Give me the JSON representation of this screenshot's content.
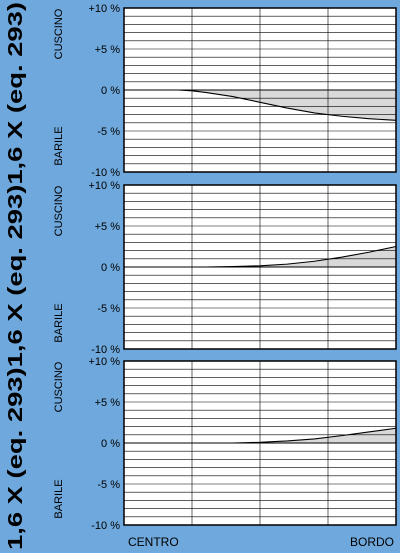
{
  "sidebar_caption": "1,6 X (eq. 293)1,6 X (eq. 293)1,6 X (eq. 293)",
  "chart_data": [
    {
      "type": "line",
      "label_top": "CUSCINO",
      "label_bottom": "BARILE",
      "ytick_labels": [
        "+10 %",
        "+5 %",
        "0 %",
        "-5 %",
        "-10 %"
      ],
      "yticks": [
        10,
        5,
        0,
        -5,
        -10
      ],
      "ylim": [
        -10,
        10
      ],
      "xlim": [
        0,
        1
      ],
      "grid": true,
      "shaded_area": true,
      "series": [
        {
          "x": [
            0,
            0.1,
            0.2,
            0.25,
            0.3,
            0.4,
            0.5,
            0.6,
            0.7,
            0.8,
            0.9,
            1.0
          ],
          "y": [
            0,
            0,
            0,
            -0.1,
            -0.3,
            -0.8,
            -1.5,
            -2.2,
            -2.8,
            -3.2,
            -3.5,
            -3.7
          ]
        }
      ]
    },
    {
      "type": "line",
      "label_top": "CUSCINO",
      "label_bottom": "BARILE",
      "ytick_labels": [
        "+10 %",
        "+5 %",
        "0 %",
        "-5 %",
        "-10 %"
      ],
      "yticks": [
        10,
        5,
        0,
        -5,
        -10
      ],
      "ylim": [
        -10,
        10
      ],
      "xlim": [
        0,
        1
      ],
      "grid": true,
      "shaded_area": true,
      "series": [
        {
          "x": [
            0,
            0.3,
            0.4,
            0.5,
            0.6,
            0.7,
            0.8,
            0.9,
            1.0
          ],
          "y": [
            0,
            0,
            0.05,
            0.15,
            0.35,
            0.7,
            1.2,
            1.8,
            2.5
          ]
        }
      ]
    },
    {
      "type": "line",
      "label_top": "CUSCINO",
      "label_bottom": "BARILE",
      "ytick_labels": [
        "+10 %",
        "+5 %",
        "0 %",
        "-5 %",
        "-10 %"
      ],
      "yticks": [
        10,
        5,
        0,
        -5,
        -10
      ],
      "ylim": [
        -10,
        10
      ],
      "xlim": [
        0,
        1
      ],
      "grid": true,
      "shaded_area": true,
      "series": [
        {
          "x": [
            0,
            0.4,
            0.5,
            0.6,
            0.7,
            0.8,
            0.9,
            1.0
          ],
          "y": [
            0,
            0,
            0.08,
            0.25,
            0.5,
            0.9,
            1.35,
            1.8
          ]
        }
      ],
      "xtick_labels": [
        "CENTRO",
        "BORDO"
      ]
    }
  ],
  "colors": {
    "background": "#6fa8dc",
    "plot_background": "#ffffff",
    "shade": "#d9d9d9",
    "line": "#000000",
    "grid": "#000000"
  }
}
